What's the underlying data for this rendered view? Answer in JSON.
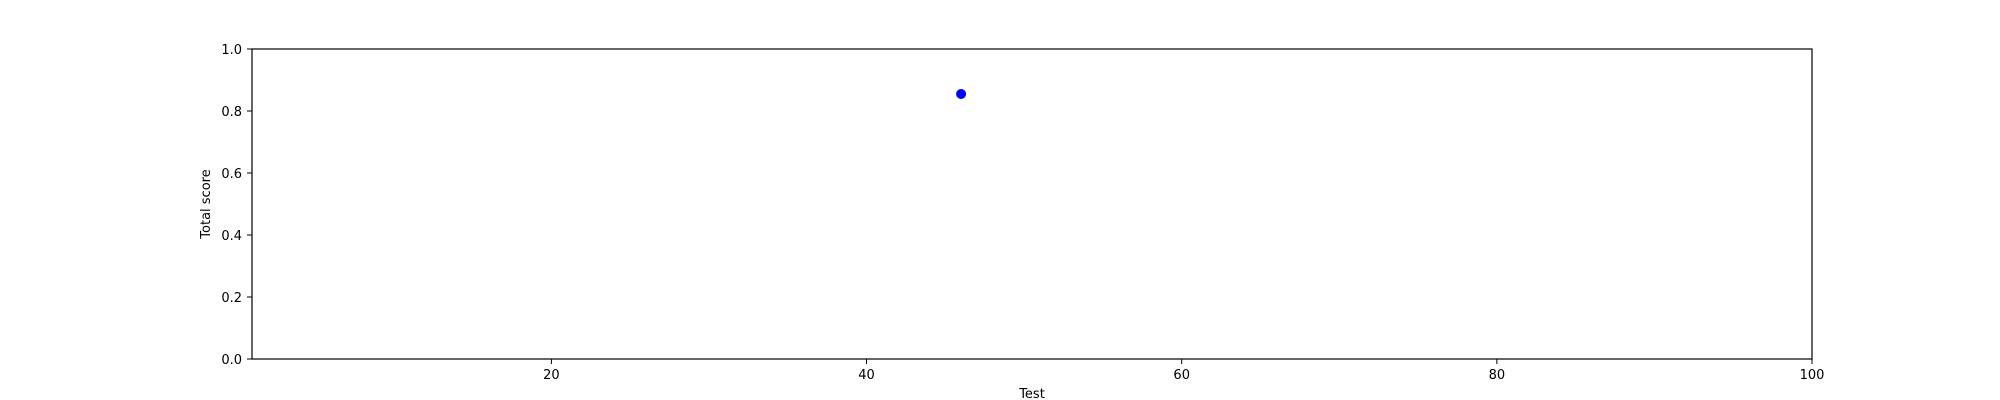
{
  "chart_data": {
    "type": "scatter",
    "title": "",
    "xlabel": "Test",
    "ylabel": "Total score",
    "xlim": [
      1,
      100
    ],
    "ylim": [
      0.0,
      1.0
    ],
    "x_ticks": [
      20,
      40,
      60,
      80,
      100
    ],
    "y_ticks": [
      0.0,
      0.2,
      0.4,
      0.6,
      0.8,
      1.0
    ],
    "x_tick_labels": [
      "20",
      "40",
      "60",
      "80",
      "100"
    ],
    "y_tick_labels": [
      "0.0",
      "0.2",
      "0.4",
      "0.6",
      "0.8",
      "1.0"
    ],
    "grid": false,
    "series": [
      {
        "color": "#0000ff",
        "points": [
          {
            "x": 46,
            "y": 0.855
          }
        ]
      }
    ]
  }
}
